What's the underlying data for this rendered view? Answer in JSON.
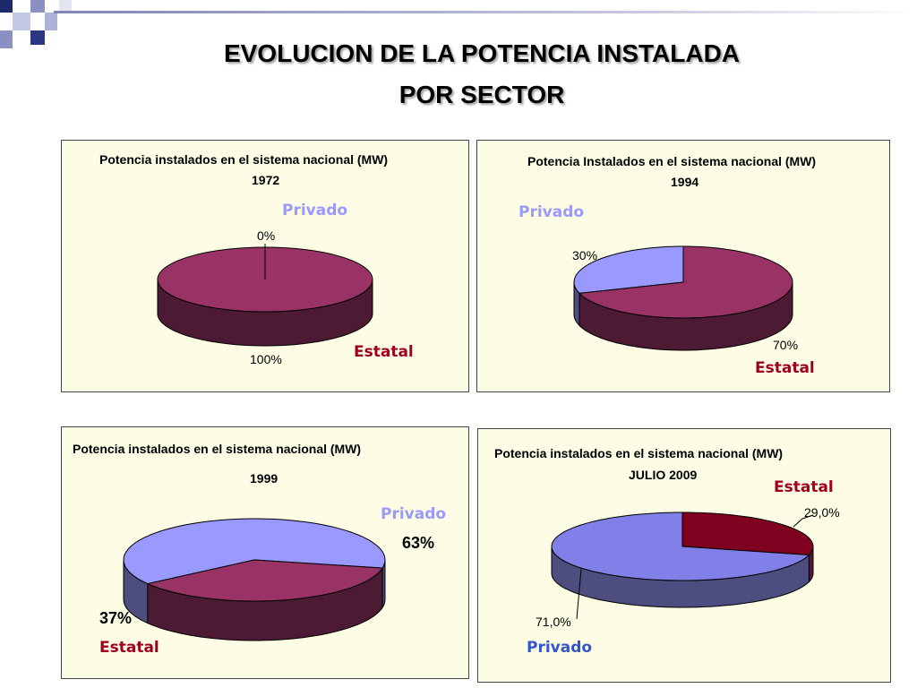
{
  "slide_title_line1": "EVOLUCION DE LA POTENCIA INSTALADA",
  "slide_title_line2": "POR SECTOR",
  "labels": {
    "privado": "Privado",
    "estatal": "Estatal"
  },
  "colors": {
    "estatal_top": "#993366",
    "estatal_side": "#4d1a33",
    "privado_top": "#9999ff",
    "privado_side": "#4d4d80",
    "estatal_2009_top": "#800020",
    "privado_2009_top": "#8080e8"
  },
  "chart_data": [
    {
      "type": "pie",
      "title": "Potencia instalados en el sistema nacional (MW)",
      "subtitle": "1972",
      "slices": [
        {
          "name": "Privado",
          "value": 0,
          "label": "0%"
        },
        {
          "name": "Estatal",
          "value": 100,
          "label": "100%"
        }
      ]
    },
    {
      "type": "pie",
      "title": "Potencia Instalados en el sistema nacional (MW)",
      "subtitle": "1994",
      "slices": [
        {
          "name": "Privado",
          "value": 30,
          "label": "30%"
        },
        {
          "name": "Estatal",
          "value": 70,
          "label": "70%"
        }
      ]
    },
    {
      "type": "pie",
      "title": "Potencia instalados en el sistema nacional (MW)",
      "subtitle": "1999",
      "slices": [
        {
          "name": "Privado",
          "value": 63,
          "label": "63%"
        },
        {
          "name": "Estatal",
          "value": 37,
          "label": "37%"
        }
      ]
    },
    {
      "type": "pie",
      "title": "Potencia instalados en el sistema nacional (MW)",
      "subtitle": "JULIO 2009",
      "slices": [
        {
          "name": "Estatal",
          "value": 29.0,
          "label": "29,0%"
        },
        {
          "name": "Privado",
          "value": 71.0,
          "label": "71,0%"
        }
      ]
    }
  ]
}
